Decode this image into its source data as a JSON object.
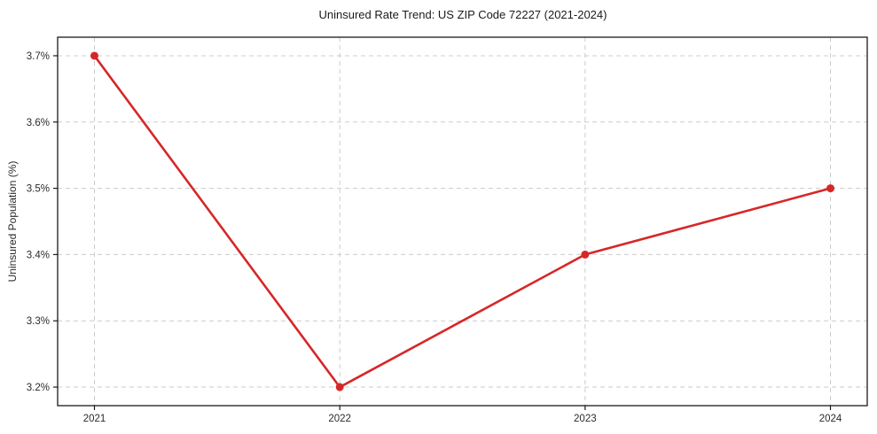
{
  "chart_data": {
    "type": "line",
    "title": "Uninsured Rate Trend: US ZIP Code 72227 (2021-2024)",
    "xlabel": "",
    "ylabel": "Uninsured Population (%)",
    "x": [
      2021,
      2022,
      2023,
      2024
    ],
    "x_tick_labels": [
      "2021",
      "2022",
      "2023",
      "2024"
    ],
    "series": [
      {
        "name": "uninsured-rate",
        "values": [
          3.7,
          3.2,
          3.4,
          3.5
        ],
        "color": "#d62728",
        "marker": "circle"
      }
    ],
    "y_ticks": [
      3.2,
      3.3,
      3.4,
      3.5,
      3.6,
      3.7
    ],
    "y_tick_labels": [
      "3.2%",
      "3.3%",
      "3.4%",
      "3.5%",
      "3.6%",
      "3.7%"
    ],
    "xlim": [
      2020.85,
      2024.15
    ],
    "ylim": [
      3.172,
      3.728
    ],
    "grid": "dashed",
    "grid_color": "#cccccc",
    "spine_color": "#1a1a1a",
    "tick_text_color": "#2b2b2b",
    "background": "#ffffff",
    "legend_position": "none"
  }
}
